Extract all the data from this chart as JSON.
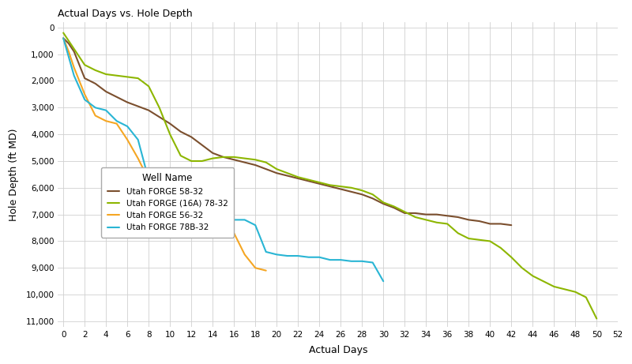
{
  "title": "Actual Days vs. Hole Depth",
  "xlabel": "Actual Days",
  "ylabel": "Hole Depth (ft MD)",
  "xlim": [
    -0.5,
    52
  ],
  "ylim": [
    11200,
    -200
  ],
  "xticks": [
    0,
    2,
    4,
    6,
    8,
    10,
    12,
    14,
    16,
    18,
    20,
    22,
    24,
    26,
    28,
    30,
    32,
    34,
    36,
    38,
    40,
    42,
    44,
    46,
    48,
    50,
    52
  ],
  "yticks": [
    0,
    1000,
    2000,
    3000,
    4000,
    5000,
    6000,
    7000,
    8000,
    9000,
    10000,
    11000
  ],
  "background_color": "#ffffff",
  "grid_color": "#d0d0d0",
  "legend_title": "Well Name",
  "series": [
    {
      "name": "Utah FORGE 58-32",
      "color": "#7B4F2E",
      "x": [
        0,
        0.5,
        1,
        1.5,
        2,
        3,
        4,
        5,
        6,
        7,
        8,
        9,
        10,
        11,
        12,
        13,
        14,
        15,
        16,
        17,
        18,
        19,
        20,
        21,
        22,
        23,
        24,
        25,
        26,
        27,
        28,
        29,
        30,
        31,
        32,
        33,
        34,
        35,
        36,
        37,
        38,
        39,
        40,
        41,
        42
      ],
      "y": [
        400,
        600,
        900,
        1400,
        1900,
        2100,
        2400,
        2600,
        2800,
        2950,
        3100,
        3350,
        3600,
        3900,
        4100,
        4400,
        4700,
        4850,
        4950,
        5050,
        5150,
        5300,
        5450,
        5550,
        5650,
        5750,
        5850,
        5950,
        6050,
        6150,
        6250,
        6400,
        6600,
        6750,
        6950,
        6950,
        7000,
        7000,
        7050,
        7100,
        7200,
        7250,
        7350,
        7350,
        7400
      ]
    },
    {
      "name": "Utah FORGE (16A) 78-32",
      "color": "#8db600",
      "x": [
        0,
        0.5,
        1,
        1.5,
        2,
        3,
        4,
        5,
        6,
        7,
        8,
        9,
        10,
        11,
        12,
        13,
        14,
        15,
        16,
        17,
        18,
        19,
        20,
        21,
        22,
        23,
        24,
        25,
        26,
        27,
        28,
        29,
        30,
        31,
        32,
        33,
        34,
        35,
        36,
        37,
        38,
        39,
        40,
        41,
        42,
        43,
        44,
        45,
        46,
        47,
        48,
        49,
        50
      ],
      "y": [
        200,
        500,
        800,
        1100,
        1400,
        1600,
        1750,
        1800,
        1850,
        1900,
        2200,
        3000,
        4000,
        4800,
        5000,
        5000,
        4900,
        4850,
        4850,
        4900,
        4950,
        5050,
        5300,
        5450,
        5600,
        5700,
        5800,
        5900,
        5950,
        6000,
        6100,
        6250,
        6550,
        6700,
        6900,
        7100,
        7200,
        7300,
        7350,
        7700,
        7900,
        7950,
        8000,
        8250,
        8600,
        9000,
        9300,
        9500,
        9700,
        9800,
        9900,
        10100,
        10900
      ]
    },
    {
      "name": "Utah FORGE 56-32",
      "color": "#f5a623",
      "x": [
        0,
        0.5,
        1,
        2,
        3,
        4,
        5,
        6,
        7,
        8,
        9,
        10,
        11,
        12,
        13,
        14,
        15,
        16,
        17,
        18,
        19
      ],
      "y": [
        400,
        900,
        1500,
        2500,
        3300,
        3500,
        3600,
        4200,
        4900,
        5700,
        6200,
        6700,
        7000,
        7200,
        7400,
        7500,
        7600,
        7700,
        8500,
        9000,
        9100
      ]
    },
    {
      "name": "Utah FORGE 78B-32",
      "color": "#29b5d4",
      "x": [
        0,
        0.5,
        1,
        2,
        3,
        4,
        5,
        6,
        7,
        8,
        9,
        10,
        11,
        12,
        13,
        14,
        15,
        16,
        17,
        18,
        19,
        20,
        21,
        22,
        23,
        24,
        25,
        26,
        27,
        28,
        29,
        30
      ],
      "y": [
        400,
        1100,
        1800,
        2700,
        3000,
        3100,
        3500,
        3700,
        4200,
        5700,
        5850,
        5900,
        6000,
        6500,
        6500,
        6700,
        6800,
        7200,
        7200,
        7400,
        8400,
        8500,
        8550,
        8550,
        8600,
        8600,
        8700,
        8700,
        8750,
        8750,
        8800,
        9500
      ]
    }
  ]
}
